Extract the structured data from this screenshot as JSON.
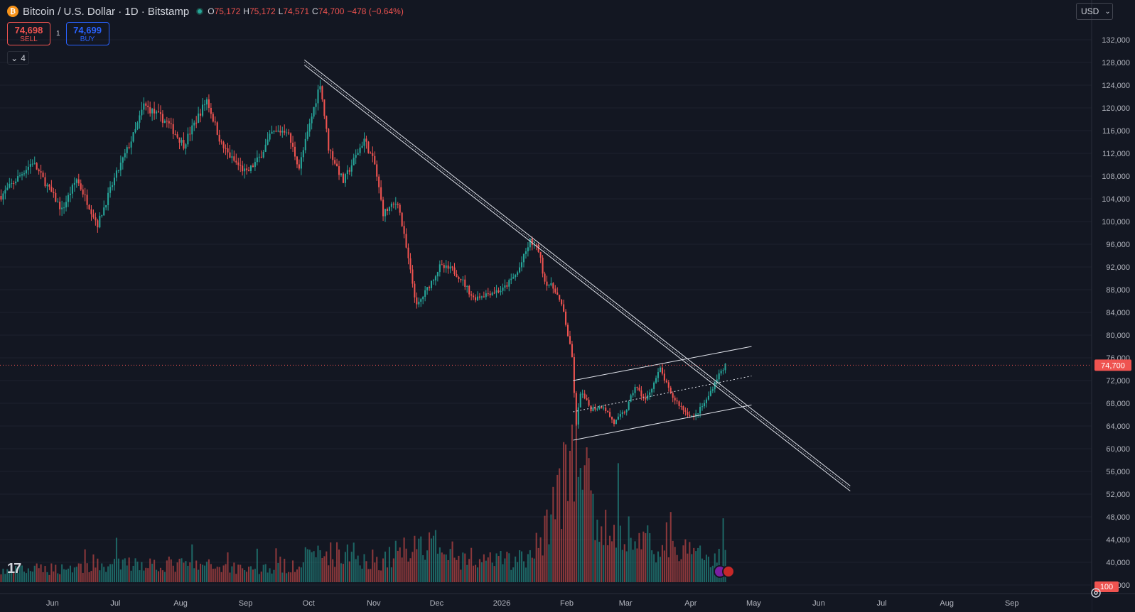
{
  "header": {
    "title": "Bitcoin / U.S. Dollar · 1D · Bitstamp",
    "ohlc": {
      "o_label": "O",
      "o": "75,172",
      "h_label": "H",
      "h": "75,172",
      "l_label": "L",
      "l": "74,571",
      "c_label": "C",
      "c": "74,700",
      "change": "−478 (−0.64%)"
    }
  },
  "trade": {
    "sell_price": "74,698",
    "sell_label": "SELL",
    "buy_price": "74,699",
    "buy_label": "BUY",
    "spread": "1"
  },
  "indicators_toggle": {
    "count": "4"
  },
  "currency": {
    "label": "USD"
  },
  "colors": {
    "up": "#26a69a",
    "down": "#ef5350",
    "background": "#131722",
    "grid": "#1e222d",
    "line": "#e0e3eb"
  },
  "chart_data": {
    "type": "candlestick",
    "symbol": "Bitcoin / U.S. Dollar",
    "interval": "1D",
    "y_axis_ticks": [
      132000,
      128000,
      124000,
      120000,
      116000,
      112000,
      108000,
      104000,
      100000,
      96000,
      92000,
      88000,
      84000,
      80000,
      76000,
      72000,
      68000,
      64000,
      60000,
      56000,
      52000,
      48000,
      44000,
      40000,
      36000
    ],
    "y_axis_labels": [
      "132,000",
      "128,000",
      "124,000",
      "120,000",
      "116,000",
      "112,000",
      "108,000",
      "104,000",
      "100,000",
      "96,000",
      "92,000",
      "88,000",
      "84,000",
      "80,000",
      "76,000",
      "72,000",
      "68,000",
      "64,000",
      "60,000",
      "56,000",
      "52,000",
      "48,000",
      "44,000",
      "40,000",
      "36,000"
    ],
    "ylim": [
      34500,
      135500
    ],
    "x_axis_labels": [
      {
        "label": "Jun",
        "date": "2025-06-01"
      },
      {
        "label": "Jul",
        "date": "2025-07-01"
      },
      {
        "label": "Aug",
        "date": "2025-08-01"
      },
      {
        "label": "Sep",
        "date": "2025-09-01"
      },
      {
        "label": "Oct",
        "date": "2025-10-01"
      },
      {
        "label": "Nov",
        "date": "2025-11-01"
      },
      {
        "label": "Dec",
        "date": "2025-12-01"
      },
      {
        "label": "2026",
        "date": "2026-01-01"
      },
      {
        "label": "Feb",
        "date": "2026-02-01"
      },
      {
        "label": "Mar",
        "date": "2026-03-01"
      },
      {
        "label": "Apr",
        "date": "2026-04-01"
      },
      {
        "label": "May",
        "date": "2026-05-01"
      },
      {
        "label": "Jun",
        "date": "2026-06-01"
      },
      {
        "label": "Jul",
        "date": "2026-07-01"
      },
      {
        "label": "Aug",
        "date": "2026-08-01"
      },
      {
        "label": "Sep",
        "date": "2026-09-01"
      }
    ],
    "xlim": [
      "2025-05-07",
      "2026-10-09"
    ],
    "current_price": 74700,
    "current_price_label": "74,700",
    "volume_badge": "100",
    "price_keypoints": [
      [
        "2025-05-07",
        104500
      ],
      [
        "2025-05-22",
        110500
      ],
      [
        "2025-06-05",
        102000
      ],
      [
        "2025-06-12",
        107500
      ],
      [
        "2025-06-22",
        99500
      ],
      [
        "2025-06-30",
        107500
      ],
      [
        "2025-07-10",
        116000
      ],
      [
        "2025-07-14",
        120500
      ],
      [
        "2025-07-25",
        117500
      ],
      [
        "2025-08-02",
        113500
      ],
      [
        "2025-08-13",
        121500
      ],
      [
        "2025-08-20",
        113500
      ],
      [
        "2025-08-25",
        111000
      ],
      [
        "2025-09-01",
        108500
      ],
      [
        "2025-09-07",
        111200
      ],
      [
        "2025-09-13",
        115500
      ],
      [
        "2025-09-20",
        116200
      ],
      [
        "2025-09-26",
        109500
      ],
      [
        "2025-10-01",
        117000
      ],
      [
        "2025-10-06",
        124500
      ],
      [
        "2025-10-10",
        113000
      ],
      [
        "2025-10-17",
        107000
      ],
      [
        "2025-10-27",
        114500
      ],
      [
        "2025-11-01",
        110000
      ],
      [
        "2025-11-05",
        101500
      ],
      [
        "2025-11-12",
        103500
      ],
      [
        "2025-11-21",
        85000
      ],
      [
        "2025-11-25",
        87500
      ],
      [
        "2025-12-02",
        92000
      ],
      [
        "2025-12-08",
        91500
      ],
      [
        "2025-12-12",
        90000
      ],
      [
        "2025-12-18",
        86500
      ],
      [
        "2025-12-26",
        87500
      ],
      [
        "2026-01-01",
        88000
      ],
      [
        "2026-01-08",
        91000
      ],
      [
        "2026-01-14",
        96500
      ],
      [
        "2026-01-18",
        95000
      ],
      [
        "2026-01-21",
        89500
      ],
      [
        "2026-01-26",
        88000
      ],
      [
        "2026-01-30",
        84000
      ],
      [
        "2026-02-03",
        76000
      ],
      [
        "2026-02-05",
        64000
      ],
      [
        "2026-02-07",
        70000
      ],
      [
        "2026-02-12",
        67000
      ],
      [
        "2026-02-18",
        67500
      ],
      [
        "2026-02-23",
        64500
      ],
      [
        "2026-03-01",
        67000
      ],
      [
        "2026-03-05",
        71000
      ],
      [
        "2026-03-10",
        68500
      ],
      [
        "2026-03-17",
        74000
      ],
      [
        "2026-03-22",
        69500
      ],
      [
        "2026-03-29",
        66500
      ],
      [
        "2026-04-02",
        65500
      ],
      [
        "2026-04-08",
        68500
      ],
      [
        "2026-04-13",
        72500
      ],
      [
        "2026-04-17",
        74700
      ]
    ],
    "volume_pattern": [
      [
        "2025-05-07",
        8
      ],
      [
        "2025-06-20",
        12
      ],
      [
        "2025-07-15",
        14
      ],
      [
        "2025-08-15",
        12
      ],
      [
        "2025-09-15",
        10
      ],
      [
        "2025-10-10",
        22
      ],
      [
        "2025-11-05",
        16
      ],
      [
        "2025-11-20",
        30
      ],
      [
        "2025-12-15",
        14
      ],
      [
        "2026-01-15",
        18
      ],
      [
        "2026-02-05",
        100
      ],
      [
        "2026-02-15",
        40
      ],
      [
        "2026-03-01",
        35
      ],
      [
        "2026-03-15",
        26
      ],
      [
        "2026-04-01",
        22
      ],
      [
        "2026-04-17",
        18
      ]
    ],
    "drawings": {
      "downtrend_line": {
        "from": [
          "2025-09-29",
          128000
        ],
        "to": [
          "2026-06-16",
          53000
        ]
      },
      "channel_upper": {
        "from": [
          "2026-02-04",
          72000
        ],
        "to": [
          "2026-04-30",
          78000
        ]
      },
      "channel_middle": {
        "from": [
          "2026-02-04",
          66500
        ],
        "to": [
          "2026-04-30",
          72800
        ]
      },
      "channel_lower": {
        "from": [
          "2026-02-04",
          61500
        ],
        "to": [
          "2026-04-30",
          67700
        ]
      }
    }
  }
}
